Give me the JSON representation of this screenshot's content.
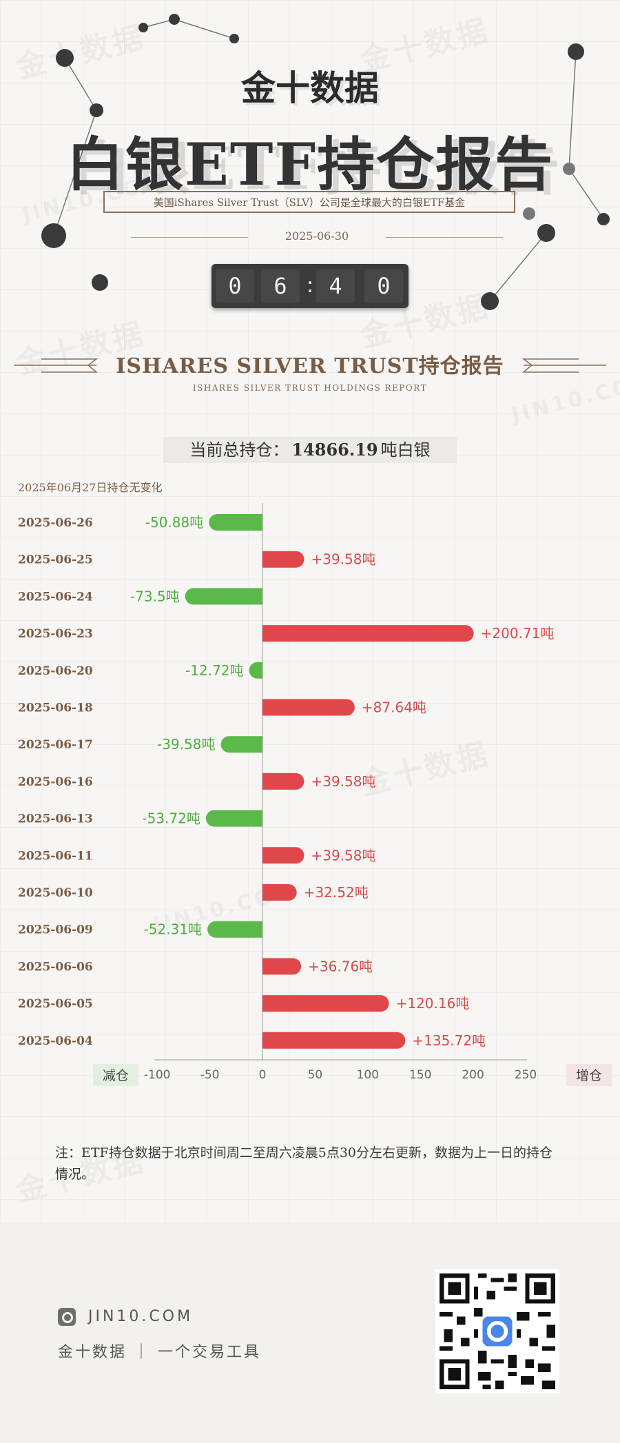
{
  "brand": "金十数据",
  "title": "白银ETF持仓报告",
  "subtitle": "美国iShares Silver Trust（SLV）公司是全球最大的白银ETF基金",
  "date": "2025-06-30",
  "clock": {
    "d1": "0",
    "d2": "6",
    "sep": ":",
    "d3": "4",
    "d4": "0"
  },
  "section": {
    "title": "ISHARES SILVER TRUST持仓报告",
    "subtitle": "ISHARES SILVER TRUST HOLDINGS REPORT"
  },
  "total": {
    "label": "当前总持仓：",
    "value": "14866.19",
    "unit": "吨白银"
  },
  "no_change_note": "2025年06月27日持仓无变化",
  "chart_data": {
    "type": "bar",
    "orientation": "horizontal",
    "categories": [
      "2025-06-26",
      "2025-06-25",
      "2025-06-24",
      "2025-06-23",
      "2025-06-20",
      "2025-06-18",
      "2025-06-17",
      "2025-06-16",
      "2025-06-13",
      "2025-06-11",
      "2025-06-10",
      "2025-06-09",
      "2025-06-06",
      "2025-06-05",
      "2025-06-04"
    ],
    "values": [
      -50.88,
      39.58,
      -73.5,
      200.71,
      -12.72,
      87.64,
      -39.58,
      39.58,
      -53.72,
      39.58,
      32.52,
      -52.31,
      36.76,
      120.16,
      135.72
    ],
    "labels": [
      "-50.88吨",
      "+39.58吨",
      "-73.5吨",
      "+200.71吨",
      "-12.72吨",
      "+87.64吨",
      "-39.58吨",
      "+39.58吨",
      "-53.72吨",
      "+39.58吨",
      "+32.52吨",
      "-52.31吨",
      "+36.76吨",
      "+120.16吨",
      "+135.72吨"
    ],
    "xlim": [
      -100,
      250
    ],
    "xticks": [
      "-100",
      "-50",
      "0",
      "50",
      "100",
      "150",
      "200",
      "250"
    ],
    "xtick_values": [
      -100,
      -50,
      0,
      50,
      100,
      150,
      200,
      250
    ],
    "left_label": "减仓",
    "right_label": "增仓",
    "colors": {
      "increase": "#e0474a",
      "decrease": "#5bb94a",
      "increase_text": "#d84b4b",
      "decrease_text": "#4caf3d",
      "date_text": "#7a5c45"
    }
  },
  "footer_note": "注：ETF持仓数据于北京时间周二至周六凌晨5点30分左右更新，数据为上一日的持仓情况。",
  "footer": {
    "site": "JIN10.COM",
    "slogan": "金十数据 ｜ 一个交易工具"
  },
  "watermarks": [
    "金十数据",
    "JIN10.COM"
  ]
}
